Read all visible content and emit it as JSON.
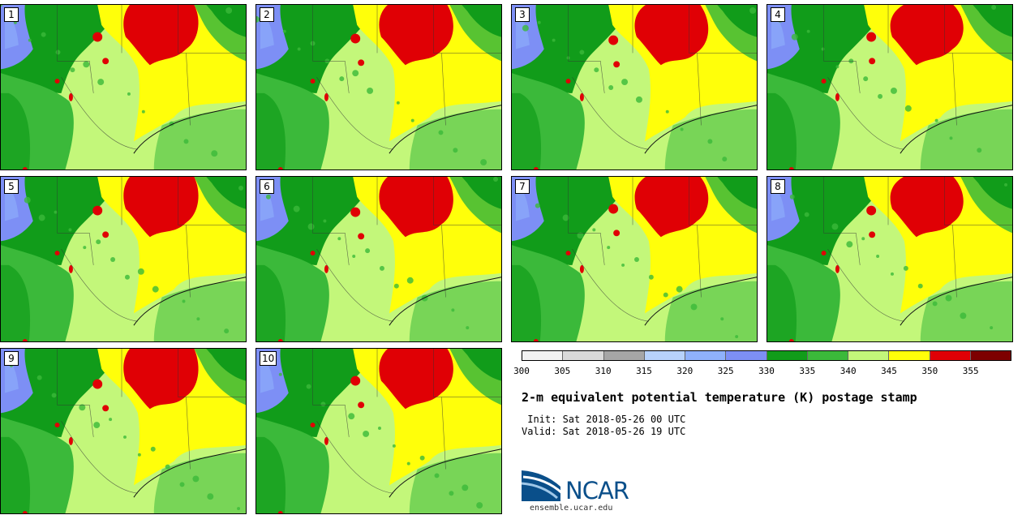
{
  "panels": [
    "1",
    "2",
    "3",
    "4",
    "5",
    "6",
    "7",
    "8",
    "9",
    "10"
  ],
  "colorbar": {
    "colors": [
      "#f2f2f2",
      "#d9d9d9",
      "#a6a6a6",
      "#b7d2fb",
      "#8fb1fb",
      "#7d8ff5",
      "#119c1a",
      "#3bb93a",
      "#c3f77a",
      "#ffff0a",
      "#e00005",
      "#7d0000"
    ],
    "labels": [
      "300",
      "305",
      "310",
      "315",
      "320",
      "325",
      "330",
      "335",
      "340",
      "345",
      "350",
      "355"
    ]
  },
  "title": "2-m equivalent potential temperature (K) postage stamp",
  "init": " Init: Sat 2018-05-26 00 UTC",
  "valid": "Valid: Sat 2018-05-26 19 UTC",
  "logo": {
    "text": "NCAR",
    "site": "ensemble.ucar.edu",
    "color": "#0a4f8a"
  }
}
